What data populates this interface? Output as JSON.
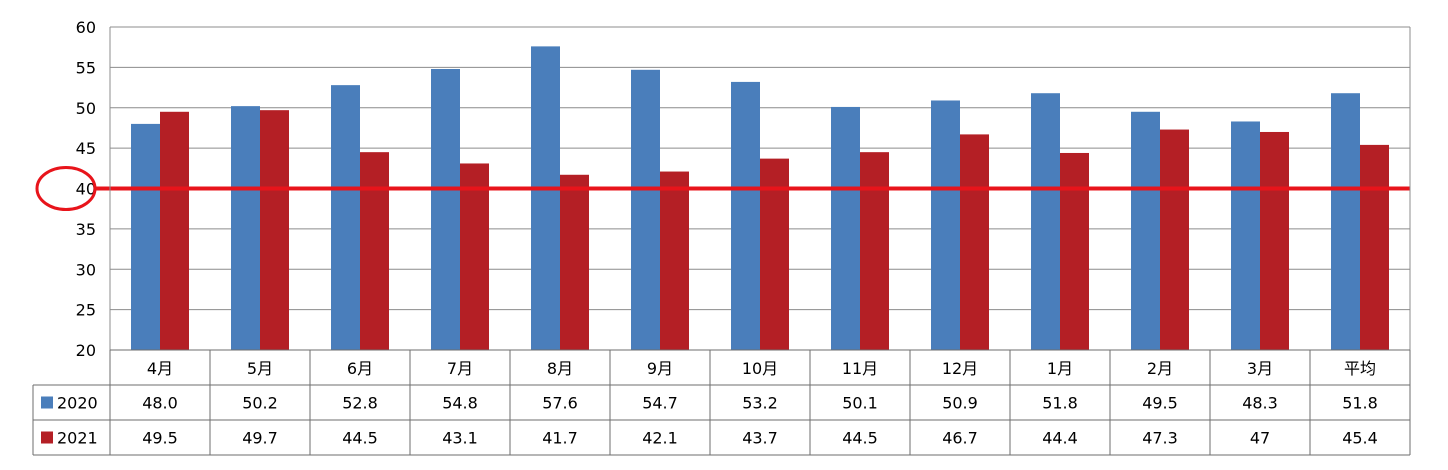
{
  "chart_data": {
    "type": "bar",
    "title": "",
    "xlabel": "",
    "ylabel": "",
    "ylim": [
      20,
      60
    ],
    "yticks": [
      "20",
      "25",
      "30",
      "35",
      "40",
      "45",
      "50",
      "55",
      "60"
    ],
    "grid": true,
    "legend": "data-table-left",
    "categories": [
      "4月",
      "5月",
      "6月",
      "7月",
      "8月",
      "9月",
      "10月",
      "11月",
      "12月",
      "1月",
      "2月",
      "3月",
      "平均"
    ],
    "series": [
      {
        "name": "2020",
        "color": "#4a7ebb",
        "values": [
          48.0,
          50.2,
          52.8,
          54.8,
          57.6,
          54.7,
          53.2,
          50.1,
          50.9,
          51.8,
          49.5,
          48.3,
          51.8
        ],
        "labels": [
          "48.0",
          "50.2",
          "52.8",
          "54.8",
          "57.6",
          "54.7",
          "53.2",
          "50.1",
          "50.9",
          "51.8",
          "49.5",
          "48.3",
          "51.8"
        ]
      },
      {
        "name": "2021",
        "color": "#b41f25",
        "values": [
          49.5,
          49.7,
          44.5,
          43.1,
          41.7,
          42.1,
          43.7,
          44.5,
          46.7,
          44.4,
          47.3,
          47,
          45.4
        ],
        "labels": [
          "49.5",
          "49.7",
          "44.5",
          "43.1",
          "41.7",
          "42.1",
          "43.7",
          "44.5",
          "46.7",
          "44.4",
          "47.3",
          "47",
          "45.4"
        ]
      }
    ],
    "reference_line": {
      "value": 40,
      "color": "#e8141b",
      "highlight_tick": "40"
    }
  }
}
